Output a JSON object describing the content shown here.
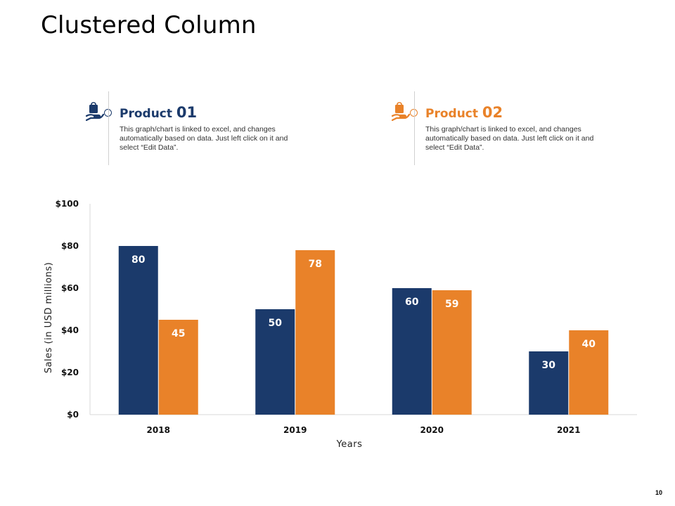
{
  "slide": {
    "title": "Clustered Column",
    "page_number": "10"
  },
  "legend": [
    {
      "name": "Product",
      "number": "01",
      "description": "This graph/chart is linked to excel, and changes automatically based on data. Just left click on it and select “Edit Data”.",
      "color": "#1b3a6b",
      "icon": "shopping-bag-hand-icon"
    },
    {
      "name": "Product",
      "number": "02",
      "description": "This graph/chart is linked to excel, and changes automatically based on data. Just left click on it and select “Edit Data”.",
      "color": "#e98229",
      "icon": "shopping-bag-hand-icon"
    }
  ],
  "chart_data": {
    "type": "bar",
    "categories": [
      "2018",
      "2019",
      "2020",
      "2021"
    ],
    "series": [
      {
        "name": "Product 01",
        "values": [
          80,
          50,
          60,
          30
        ],
        "color": "#1b3a6b"
      },
      {
        "name": "Product 02",
        "values": [
          45,
          78,
          59,
          40
        ],
        "color": "#e98229"
      }
    ],
    "ylim": [
      0,
      100
    ],
    "yticks": [
      0,
      20,
      40,
      60,
      80,
      100
    ],
    "ytick_labels": [
      "$0",
      "$20",
      "$40",
      "$60",
      "$80",
      "$100"
    ],
    "xlabel": "Years",
    "ylabel": "Sales (in USD millions)",
    "grid": false,
    "data_labels": true
  }
}
